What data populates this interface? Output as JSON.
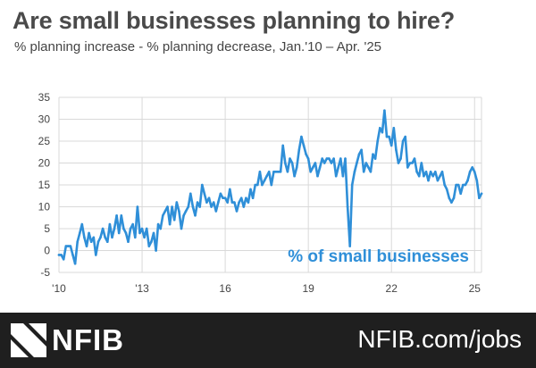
{
  "chart_data": {
    "type": "line",
    "title": "Are small businesses planning to hire?",
    "subtitle": "% planning increase - % planning decrease,  Jan.'10 – Apr. '25",
    "xlabel": "",
    "ylabel": "",
    "xlim": [
      2010,
      2025.25
    ],
    "ylim": [
      -5,
      35
    ],
    "yticks": [
      -5,
      0,
      5,
      10,
      15,
      20,
      25,
      30,
      35
    ],
    "xticks": [
      {
        "value": 2010,
        "label": "'10"
      },
      {
        "value": 2013,
        "label": "'13"
      },
      {
        "value": 2016,
        "label": "16"
      },
      {
        "value": 2019,
        "label": "19"
      },
      {
        "value": 2022,
        "label": "22"
      },
      {
        "value": 2025,
        "label": "25"
      }
    ],
    "grid": true,
    "annotation": "% of small businesses",
    "color": "#2f8fd8",
    "series": [
      {
        "points": [
          [
            2010.0,
            -1
          ],
          [
            2010.083,
            -1
          ],
          [
            2010.167,
            -2
          ],
          [
            2010.25,
            1
          ],
          [
            2010.333,
            1
          ],
          [
            2010.417,
            1
          ],
          [
            2010.5,
            -1
          ],
          [
            2010.583,
            -3
          ],
          [
            2010.667,
            2
          ],
          [
            2010.75,
            4
          ],
          [
            2010.833,
            6
          ],
          [
            2010.917,
            3
          ],
          [
            2011.0,
            1
          ],
          [
            2011.083,
            4
          ],
          [
            2011.167,
            2
          ],
          [
            2011.25,
            3
          ],
          [
            2011.333,
            -1
          ],
          [
            2011.417,
            2
          ],
          [
            2011.5,
            3
          ],
          [
            2011.583,
            5
          ],
          [
            2011.667,
            3
          ],
          [
            2011.75,
            2
          ],
          [
            2011.833,
            6
          ],
          [
            2011.917,
            3
          ],
          [
            2012.0,
            5
          ],
          [
            2012.083,
            8
          ],
          [
            2012.167,
            4
          ],
          [
            2012.25,
            8
          ],
          [
            2012.333,
            5
          ],
          [
            2012.417,
            4
          ],
          [
            2012.5,
            2
          ],
          [
            2012.583,
            5
          ],
          [
            2012.667,
            6
          ],
          [
            2012.75,
            3
          ],
          [
            2012.833,
            10
          ],
          [
            2012.917,
            4
          ],
          [
            2013.0,
            5
          ],
          [
            2013.083,
            3
          ],
          [
            2013.167,
            5
          ],
          [
            2013.25,
            1
          ],
          [
            2013.333,
            2
          ],
          [
            2013.417,
            4
          ],
          [
            2013.5,
            0
          ],
          [
            2013.583,
            6
          ],
          [
            2013.667,
            5
          ],
          [
            2013.75,
            8
          ],
          [
            2013.833,
            9
          ],
          [
            2013.917,
            10
          ],
          [
            2014.0,
            6
          ],
          [
            2014.083,
            10
          ],
          [
            2014.167,
            7
          ],
          [
            2014.25,
            11
          ],
          [
            2014.333,
            9
          ],
          [
            2014.417,
            5
          ],
          [
            2014.5,
            8
          ],
          [
            2014.583,
            9
          ],
          [
            2014.667,
            10
          ],
          [
            2014.75,
            13
          ],
          [
            2014.833,
            10
          ],
          [
            2014.917,
            8
          ],
          [
            2015.0,
            11
          ],
          [
            2015.083,
            10
          ],
          [
            2015.167,
            15
          ],
          [
            2015.25,
            13
          ],
          [
            2015.333,
            11
          ],
          [
            2015.417,
            12
          ],
          [
            2015.5,
            10
          ],
          [
            2015.583,
            11
          ],
          [
            2015.667,
            9
          ],
          [
            2015.75,
            11
          ],
          [
            2015.833,
            13
          ],
          [
            2015.917,
            12
          ],
          [
            2016.0,
            12
          ],
          [
            2016.083,
            11
          ],
          [
            2016.167,
            14
          ],
          [
            2016.25,
            11
          ],
          [
            2016.333,
            11
          ],
          [
            2016.417,
            9
          ],
          [
            2016.5,
            11
          ],
          [
            2016.583,
            12
          ],
          [
            2016.667,
            10
          ],
          [
            2016.75,
            12
          ],
          [
            2016.833,
            11
          ],
          [
            2016.917,
            14
          ],
          [
            2017.0,
            12
          ],
          [
            2017.083,
            15
          ],
          [
            2017.167,
            15
          ],
          [
            2017.25,
            18
          ],
          [
            2017.333,
            15
          ],
          [
            2017.417,
            16
          ],
          [
            2017.5,
            17
          ],
          [
            2017.583,
            18
          ],
          [
            2017.667,
            15
          ],
          [
            2017.75,
            18
          ],
          [
            2017.833,
            18
          ],
          [
            2017.917,
            18
          ],
          [
            2018.0,
            18
          ],
          [
            2018.083,
            24
          ],
          [
            2018.167,
            20
          ],
          [
            2018.25,
            18
          ],
          [
            2018.333,
            21
          ],
          [
            2018.417,
            20
          ],
          [
            2018.5,
            17
          ],
          [
            2018.583,
            19
          ],
          [
            2018.667,
            23
          ],
          [
            2018.75,
            26
          ],
          [
            2018.833,
            24
          ],
          [
            2018.917,
            22
          ],
          [
            2019.0,
            21
          ],
          [
            2019.083,
            18
          ],
          [
            2019.167,
            19
          ],
          [
            2019.25,
            20
          ],
          [
            2019.333,
            17
          ],
          [
            2019.417,
            19
          ],
          [
            2019.5,
            21
          ],
          [
            2019.583,
            20
          ],
          [
            2019.667,
            21
          ],
          [
            2019.75,
            21
          ],
          [
            2019.833,
            20
          ],
          [
            2019.917,
            21
          ],
          [
            2020.0,
            17
          ],
          [
            2020.083,
            19
          ],
          [
            2020.167,
            21
          ],
          [
            2020.25,
            17
          ],
          [
            2020.333,
            21
          ],
          [
            2020.417,
            10
          ],
          [
            2020.5,
            1
          ],
          [
            2020.583,
            15
          ],
          [
            2020.667,
            18
          ],
          [
            2020.75,
            20
          ],
          [
            2020.833,
            22
          ],
          [
            2020.917,
            23
          ],
          [
            2021.0,
            18
          ],
          [
            2021.083,
            20
          ],
          [
            2021.167,
            19
          ],
          [
            2021.25,
            18
          ],
          [
            2021.333,
            22
          ],
          [
            2021.417,
            21
          ],
          [
            2021.5,
            25
          ],
          [
            2021.583,
            28
          ],
          [
            2021.667,
            27
          ],
          [
            2021.75,
            32
          ],
          [
            2021.833,
            26
          ],
          [
            2021.917,
            26
          ],
          [
            2022.0,
            24
          ],
          [
            2022.083,
            28
          ],
          [
            2022.167,
            23
          ],
          [
            2022.25,
            20
          ],
          [
            2022.333,
            21
          ],
          [
            2022.417,
            25
          ],
          [
            2022.5,
            26
          ],
          [
            2022.583,
            19
          ],
          [
            2022.667,
            20
          ],
          [
            2022.75,
            20
          ],
          [
            2022.833,
            21
          ],
          [
            2022.917,
            18
          ],
          [
            2023.0,
            17
          ],
          [
            2023.083,
            20
          ],
          [
            2023.167,
            17
          ],
          [
            2023.25,
            18
          ],
          [
            2023.333,
            16
          ],
          [
            2023.417,
            18
          ],
          [
            2023.5,
            17
          ],
          [
            2023.583,
            18
          ],
          [
            2023.667,
            16
          ],
          [
            2023.75,
            17
          ],
          [
            2023.833,
            18
          ],
          [
            2023.917,
            15
          ],
          [
            2024.0,
            14
          ],
          [
            2024.083,
            12
          ],
          [
            2024.167,
            11
          ],
          [
            2024.25,
            12
          ],
          [
            2024.333,
            15
          ],
          [
            2024.417,
            15
          ],
          [
            2024.5,
            13
          ],
          [
            2024.583,
            15
          ],
          [
            2024.667,
            15
          ],
          [
            2024.75,
            16
          ],
          [
            2024.833,
            18
          ],
          [
            2024.917,
            19
          ],
          [
            2025.0,
            18
          ],
          [
            2025.083,
            16
          ],
          [
            2025.167,
            12
          ],
          [
            2025.25,
            13
          ]
        ]
      }
    ]
  },
  "footer": {
    "brand": "NFIB",
    "url": "NFIB.com/jobs"
  },
  "icons": {
    "logo": "nfib-logo-icon"
  }
}
